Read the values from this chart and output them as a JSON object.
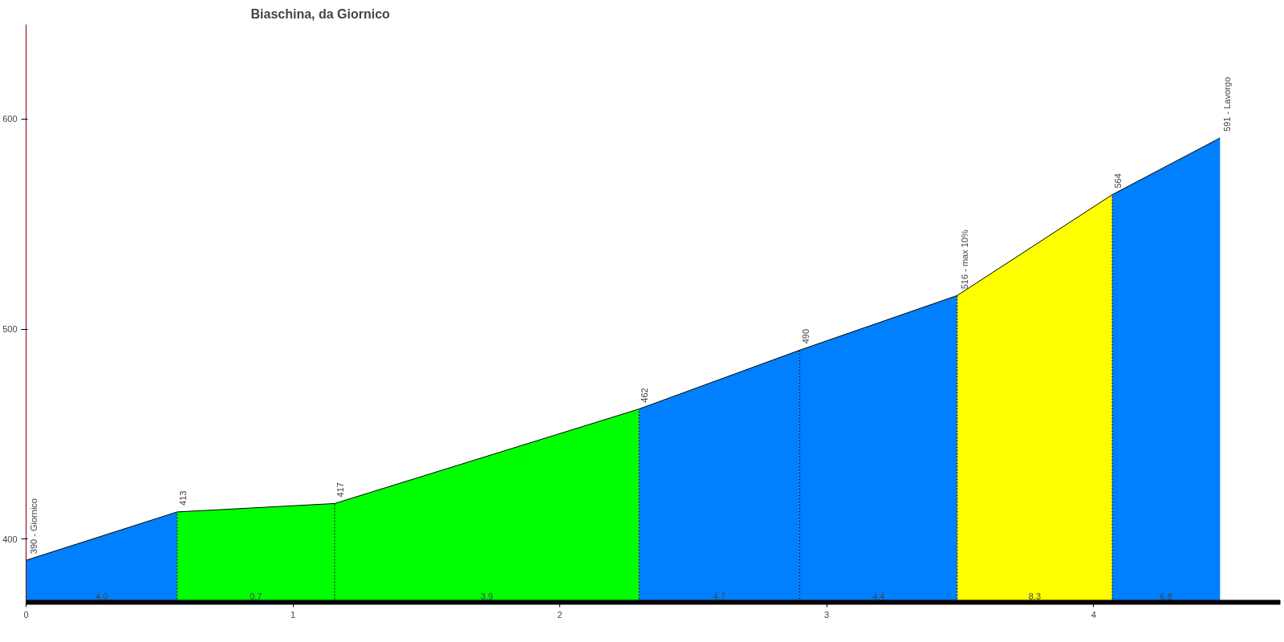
{
  "chart_data": {
    "type": "area",
    "title": "Biaschina, da Giornico",
    "xlim": [
      0,
      4.7
    ],
    "xticks": [
      0,
      1,
      2,
      3,
      4
    ],
    "ylim": [
      370,
      645
    ],
    "yticks": [
      400,
      500,
      600
    ],
    "grid": false,
    "series": [
      {
        "type": "line",
        "color": "#000000",
        "x": [
          0,
          0.566,
          1.156,
          2.297,
          2.899,
          3.489,
          4.07,
          4.474
        ],
        "values": [
          390,
          413,
          417,
          462,
          490,
          516,
          564,
          591
        ],
        "value_labels": [
          "390 - Giornico",
          "413",
          "417",
          "462",
          "490",
          "516 - max 10%",
          "564",
          "591 - Lavorgo"
        ]
      },
      {
        "color": "#0080ff",
        "x": [
          0,
          0.566
        ],
        "values": [
          390,
          413
        ]
      },
      {
        "color": "#00ff00",
        "x": [
          0.566,
          1.156
        ],
        "values": [
          413,
          417
        ]
      },
      {
        "color": "#00ff00",
        "x": [
          1.156,
          2.297
        ],
        "values": [
          417,
          462
        ]
      },
      {
        "color": "#0080ff",
        "x": [
          2.297,
          2.899
        ],
        "values": [
          462,
          490
        ]
      },
      {
        "color": "#0080ff",
        "x": [
          2.899,
          3.489
        ],
        "values": [
          490,
          516
        ]
      },
      {
        "color": "#ffff00",
        "x": [
          3.489,
          4.07
        ],
        "values": [
          516,
          564
        ]
      },
      {
        "color": "#0080ff",
        "x": [
          4.07,
          4.474
        ],
        "values": [
          564,
          591
        ]
      }
    ],
    "annotations": [
      "4,0",
      "0,7",
      "3,9",
      "4,7",
      "4,4",
      "8,3",
      "6,8"
    ]
  }
}
